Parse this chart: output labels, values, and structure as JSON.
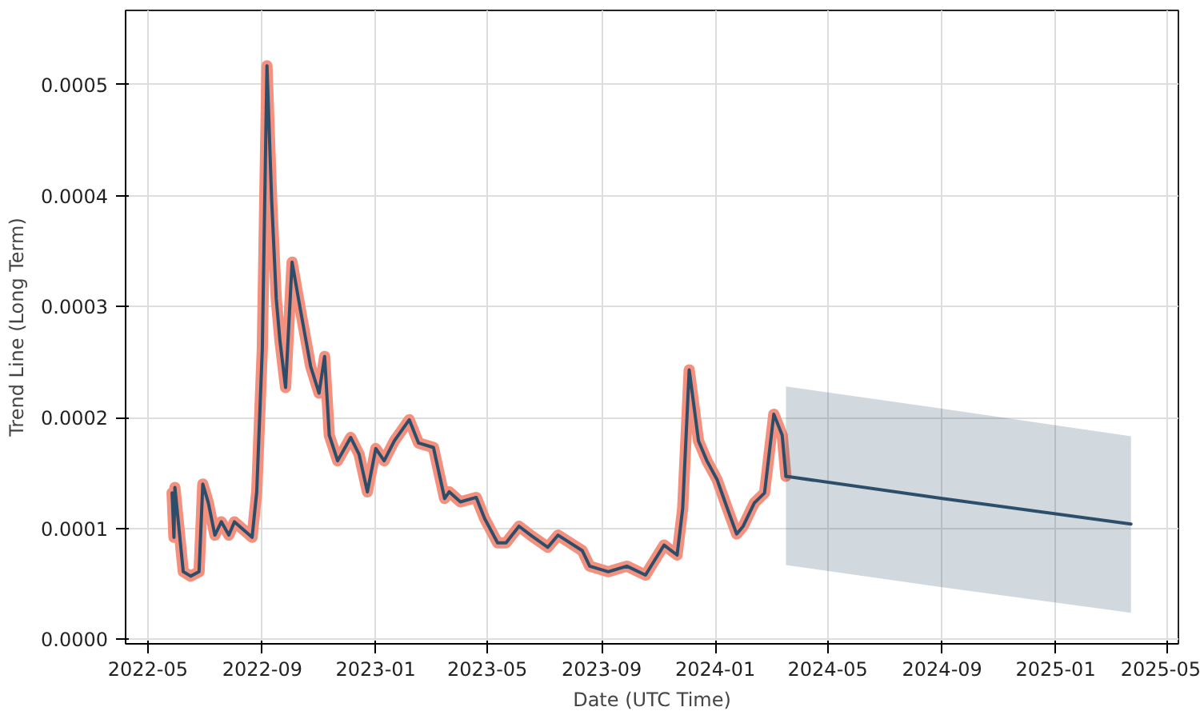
{
  "chart_data": {
    "type": "line",
    "xlabel": "Date (UTC Time)",
    "ylabel": "Trend Line (Long Term)",
    "grid": true,
    "line_style": "solid",
    "xlim": [
      "2022-04-07",
      "2025-05-13"
    ],
    "ylim": [
      -4e-06,
      0.000567
    ],
    "xticks": [
      {
        "value": "2022-05-01",
        "label": "2022-05"
      },
      {
        "value": "2022-09-01",
        "label": "2022-09"
      },
      {
        "value": "2023-01-01",
        "label": "2023-01"
      },
      {
        "value": "2023-05-01",
        "label": "2023-05"
      },
      {
        "value": "2023-09-01",
        "label": "2023-09"
      },
      {
        "value": "2024-01-01",
        "label": "2024-01"
      },
      {
        "value": "2024-05-01",
        "label": "2024-05"
      },
      {
        "value": "2024-09-01",
        "label": "2024-09"
      },
      {
        "value": "2025-01-01",
        "label": "2025-01"
      },
      {
        "value": "2025-05-01",
        "label": "2025-05"
      }
    ],
    "yticks": [
      {
        "value": 0,
        "label": "0.0000"
      },
      {
        "value": 0.0001,
        "label": "0.0001"
      },
      {
        "value": 0.0002,
        "label": "0.0002"
      },
      {
        "value": 0.0003,
        "label": "0.0003"
      },
      {
        "value": 0.0004,
        "label": "0.0004"
      },
      {
        "value": 0.0005,
        "label": "0.0005"
      }
    ],
    "x": [
      "2022-05-27",
      "2022-05-29",
      "2022-05-30",
      "2022-06-08",
      "2022-06-16",
      "2022-06-25",
      "2022-06-29",
      "2022-07-05",
      "2022-07-12",
      "2022-07-19",
      "2022-07-27",
      "2022-08-02",
      "2022-08-21",
      "2022-08-26",
      "2022-09-01",
      "2022-09-06",
      "2022-09-11",
      "2022-09-16",
      "2022-09-20",
      "2022-09-26",
      "2022-10-03",
      "2022-10-12",
      "2022-10-23",
      "2022-11-01",
      "2022-11-07",
      "2022-11-12",
      "2022-11-21",
      "2022-12-05",
      "2022-12-14",
      "2022-12-23",
      "2023-01-01",
      "2023-01-10",
      "2023-01-21",
      "2023-02-06",
      "2023-02-16",
      "2023-03-04",
      "2023-03-16",
      "2023-03-21",
      "2023-04-02",
      "2023-04-19",
      "2023-04-28",
      "2023-05-12",
      "2023-05-21",
      "2023-06-04",
      "2023-06-18",
      "2023-07-05",
      "2023-07-16",
      "2023-08-11",
      "2023-08-19",
      "2023-09-08",
      "2023-09-28",
      "2023-10-18",
      "2023-11-07",
      "2023-11-21",
      "2023-11-27",
      "2023-12-04",
      "2023-12-14",
      "2023-12-23",
      "2024-01-03",
      "2024-01-14",
      "2024-01-24",
      "2024-01-31",
      "2024-02-12",
      "2024-02-23",
      "2024-03-04",
      "2024-03-13",
      "2024-03-17"
    ],
    "series": [
      {
        "color": "#f4907e",
        "values": [
          0.000132,
          9.2e-05,
          0.000137,
          6.1e-05,
          5.7e-05,
          6.1e-05,
          0.00014,
          0.000123,
          9.4e-05,
          0.000106,
          9.4e-05,
          0.000106,
          9.2e-05,
          0.000133,
          0.000262,
          0.000517,
          0.000397,
          0.000307,
          0.000269,
          0.000227,
          0.00034,
          0.000297,
          0.000246,
          0.000222,
          0.000255,
          0.000184,
          0.000161,
          0.000182,
          0.000167,
          0.000133,
          0.000172,
          0.000161,
          0.000179,
          0.000198,
          0.000177,
          0.000173,
          0.000127,
          0.000133,
          0.000124,
          0.000128,
          0.000109,
          8.7e-05,
          8.7e-05,
          0.000102,
          9.3e-05,
          8.3e-05,
          9.4e-05,
          8e-05,
          6.6e-05,
          6.1e-05,
          6.6e-05,
          5.8e-05,
          8.5e-05,
          7.6e-05,
          0.000118,
          0.000243,
          0.000179,
          0.000161,
          0.000144,
          0.000118,
          9.5e-05,
          0.000102,
          0.000123,
          0.000132,
          0.000203,
          0.000184,
          0.000147
        ]
      },
      {
        "color": "#2c4e6b",
        "values": [
          0.000132,
          9.2e-05,
          0.000137,
          6.1e-05,
          5.7e-05,
          6.1e-05,
          0.00014,
          0.000123,
          9.4e-05,
          0.000106,
          9.4e-05,
          0.000106,
          9.2e-05,
          0.000133,
          0.000262,
          0.000517,
          0.000397,
          0.000307,
          0.000269,
          0.000227,
          0.00034,
          0.000297,
          0.000246,
          0.000222,
          0.000255,
          0.000184,
          0.000161,
          0.000182,
          0.000167,
          0.000133,
          0.000172,
          0.000161,
          0.000179,
          0.000198,
          0.000177,
          0.000173,
          0.000127,
          0.000133,
          0.000124,
          0.000128,
          0.000109,
          8.7e-05,
          8.7e-05,
          0.000102,
          9.3e-05,
          8.3e-05,
          9.4e-05,
          8e-05,
          6.6e-05,
          6.1e-05,
          6.6e-05,
          5.8e-05,
          8.5e-05,
          7.6e-05,
          0.000118,
          0.000243,
          0.000179,
          0.000161,
          0.000144,
          0.000118,
          9.5e-05,
          0.000102,
          0.000123,
          0.000132,
          0.000203,
          0.000184,
          0.000147
        ]
      },
      {
        "color": "#2c4e6b",
        "x": [
          "2024-03-17",
          "2024-09-01",
          "2025-03-23"
        ],
        "values": [
          0.000147,
          0.000127,
          0.000104
        ],
        "lower": [
          6.7e-05,
          4.7e-05,
          2.4e-05
        ],
        "upper": [
          0.000228,
          0.000208,
          0.000183
        ]
      }
    ]
  }
}
